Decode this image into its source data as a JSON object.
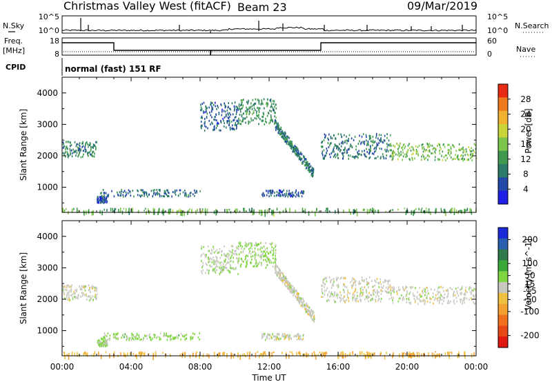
{
  "header": {
    "title": "Christmas Valley West (fitACF)",
    "beam": "Beam 23",
    "date": "09/Mar/2019"
  },
  "noise_panel": {
    "left_label": "N.Sky",
    "left_ticks": [
      "10^5",
      "10^0"
    ],
    "right_ticks": [
      "10^5",
      "10^0"
    ],
    "right_label": "N.Search"
  },
  "freq_panel": {
    "left_label_1": "Freq.",
    "left_label_2": "[MHz]",
    "left_ticks": [
      "18",
      "8"
    ],
    "right_ticks": [
      "60",
      "0"
    ],
    "right_label": "Nave"
  },
  "cpid_panel": {
    "left_label": "CPID",
    "mode": "normal (fast) 151 RF"
  },
  "x_axis": {
    "title": "Time UT",
    "ticks": [
      "00:00",
      "04:00",
      "08:00",
      "12:00",
      "16:00",
      "20:00",
      "00:00"
    ]
  },
  "colors": {
    "power": [
      "#1f1fe6",
      "#2348a8",
      "#2e7a6a",
      "#3f9a50",
      "#7cc44a",
      "#c9d43a",
      "#f0b030",
      "#ee7a20",
      "#e82a14"
    ],
    "velocity": [
      "#1a2ad8",
      "#2a5fb0",
      "#2f7a4a",
      "#3aa838",
      "#7fd640",
      "#c8c8c0",
      "#f0c040",
      "#f2a030",
      "#f07020",
      "#e84818",
      "#e01810"
    ]
  },
  "chart_data": [
    {
      "type": "heatmap",
      "panel": "power",
      "ylabel": "Slant Range [km]",
      "yticks": [
        "1000",
        "2000",
        "3000",
        "4000"
      ],
      "ylim": [
        200,
        4500
      ],
      "xlim": [
        "00:00",
        "24:00"
      ],
      "colorbar_label": "Power [dB]",
      "colorbar_ticks": [
        "4",
        "8",
        "12",
        "16",
        "20",
        "24",
        "28"
      ],
      "colorbar_range": [
        0,
        32
      ],
      "scatter_regions": [
        {
          "t": [
            0.0,
            2.0
          ],
          "range": [
            1950,
            2450
          ],
          "level": 10
        },
        {
          "t": [
            2.2,
            8.0
          ],
          "range": [
            700,
            920
          ],
          "level": 8
        },
        {
          "t": [
            2.0,
            2.6
          ],
          "range": [
            500,
            700
          ],
          "level": 6
        },
        {
          "t": [
            8.0,
            10.2
          ],
          "range": [
            2800,
            3700
          ],
          "level": 7
        },
        {
          "t": [
            10.2,
            12.4
          ],
          "range": [
            3000,
            3800
          ],
          "level": 11
        },
        {
          "t": [
            12.3,
            14.6
          ],
          "range": [
            1400,
            3000
          ],
          "level": 9
        },
        {
          "t": [
            11.5,
            14.0
          ],
          "range": [
            700,
            900
          ],
          "level": 6
        },
        {
          "t": [
            15.0,
            19.0
          ],
          "range": [
            1900,
            2700
          ],
          "level": 9
        },
        {
          "t": [
            19.0,
            24.0
          ],
          "range": [
            1850,
            2400
          ],
          "level": 15
        },
        {
          "t": [
            0.0,
            24.0
          ],
          "range": [
            200,
            320
          ],
          "level": 14
        }
      ]
    },
    {
      "type": "heatmap",
      "panel": "velocity",
      "ylabel": "Slant Range [km]",
      "yticks": [
        "1000",
        "2000",
        "3000",
        "4000"
      ],
      "ylim": [
        200,
        4500
      ],
      "xlim": [
        "00:00",
        "24:00"
      ],
      "colorbar_label": "Velocity [m s^-1]",
      "colorbar_ticks": [
        "200",
        "100",
        "50",
        "15",
        "-15",
        "-50",
        "-100",
        "-200"
      ],
      "colorbar_range": [
        -250,
        250
      ],
      "scatter_regions": [
        {
          "t": [
            0.0,
            2.0
          ],
          "range": [
            1950,
            2450
          ],
          "level": 0
        },
        {
          "t": [
            2.2,
            8.0
          ],
          "range": [
            700,
            920
          ],
          "level": 40
        },
        {
          "t": [
            2.0,
            2.6
          ],
          "range": [
            500,
            700
          ],
          "level": 30
        },
        {
          "t": [
            8.0,
            10.2
          ],
          "range": [
            2800,
            3700
          ],
          "level": 10
        },
        {
          "t": [
            10.2,
            12.4
          ],
          "range": [
            3000,
            3800
          ],
          "level": 35
        },
        {
          "t": [
            12.3,
            14.6
          ],
          "range": [
            1400,
            3000
          ],
          "level": 0
        },
        {
          "t": [
            11.5,
            14.0
          ],
          "range": [
            700,
            900
          ],
          "level": 0
        },
        {
          "t": [
            15.0,
            19.0
          ],
          "range": [
            1900,
            2700
          ],
          "level": 0
        },
        {
          "t": [
            19.0,
            24.0
          ],
          "range": [
            1850,
            2400
          ],
          "level": 0
        },
        {
          "t": [
            0.0,
            24.0
          ],
          "range": [
            200,
            320
          ],
          "level": -60
        }
      ]
    }
  ]
}
